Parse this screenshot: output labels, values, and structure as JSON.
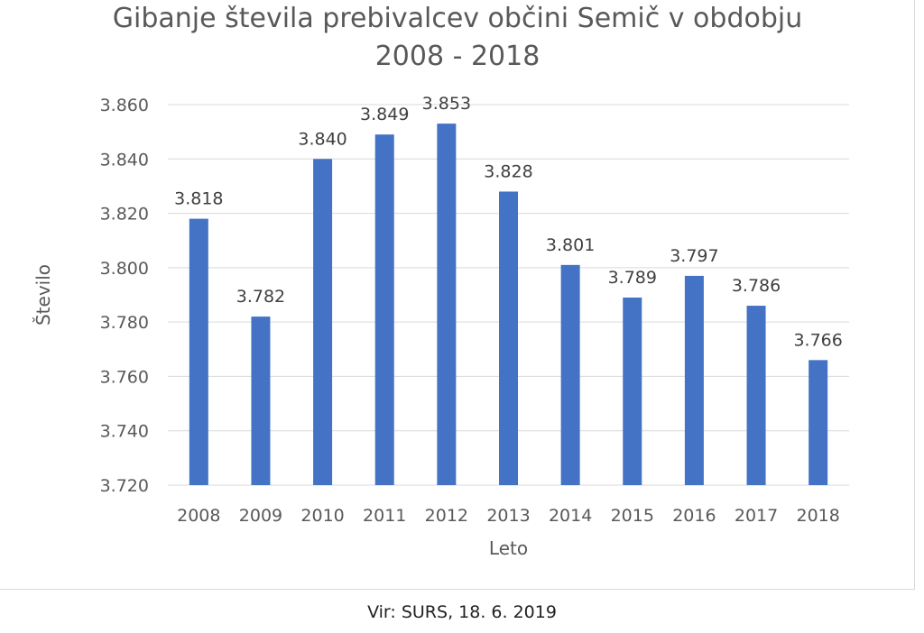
{
  "chart_data": {
    "type": "bar",
    "title": [
      "Gibanje števila prebivalcev občini Semič v obdobju",
      "2008 - 2018"
    ],
    "xlabel": "Leto",
    "ylabel": "Število",
    "categories": [
      "2008",
      "2009",
      "2010",
      "2011",
      "2012",
      "2013",
      "2014",
      "2015",
      "2016",
      "2017",
      "2018"
    ],
    "values": [
      3818,
      3782,
      3840,
      3849,
      3853,
      3828,
      3801,
      3789,
      3797,
      3786,
      3766
    ],
    "value_labels": [
      "3.818",
      "3.782",
      "3.840",
      "3.849",
      "3.853",
      "3.828",
      "3.801",
      "3.789",
      "3.797",
      "3.786",
      "3.766"
    ],
    "ylim": [
      3720,
      3860
    ],
    "yticks": [
      3720,
      3740,
      3760,
      3780,
      3800,
      3820,
      3840,
      3860
    ],
    "ytick_labels": [
      "3.720",
      "3.740",
      "3.760",
      "3.780",
      "3.800",
      "3.820",
      "3.840",
      "3.860"
    ],
    "grid": true,
    "bar_color": "#4472c4"
  },
  "source": "Vir: SURS, 18. 6. 2019"
}
